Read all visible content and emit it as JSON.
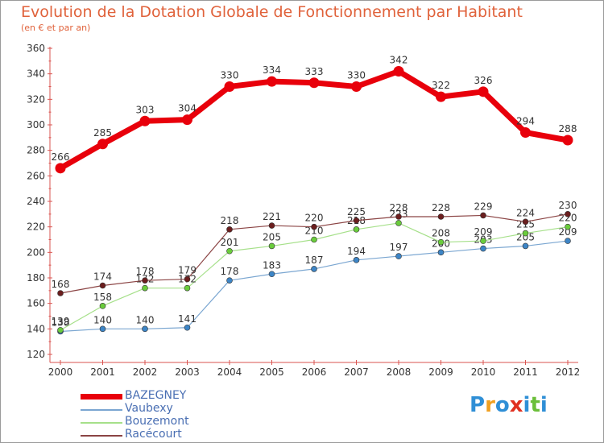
{
  "chart_data": {
    "type": "line",
    "title": "Evolution de la Dotation Globale de Fonctionnement par Habitant",
    "subtitle": "(en € et par an)",
    "xlabel": "",
    "ylabel": "",
    "ylim": [
      120,
      360
    ],
    "yticks": [
      "120",
      "140",
      "160",
      "180",
      "200",
      "220",
      "240",
      "260",
      "280",
      "300",
      "320",
      "340",
      "360"
    ],
    "categories": [
      "2000",
      "2001",
      "2002",
      "2003",
      "2004",
      "2005",
      "2006",
      "2007",
      "2008",
      "2009",
      "2010",
      "2011",
      "2012"
    ],
    "series": [
      {
        "name": "Vaubexy",
        "color": "#7aa6d1",
        "marker_color": "#3d85c6",
        "width": 1.2,
        "values": [
          138,
          140,
          140,
          141,
          178,
          183,
          187,
          194,
          197,
          200,
          203,
          205,
          209
        ],
        "labels": [
          "138",
          "140",
          "140",
          "141",
          "178",
          "183",
          "187",
          "194",
          "197",
          "200",
          "203",
          "205",
          "209"
        ]
      },
      {
        "name": "Bouzemont",
        "color": "#a6e08a",
        "marker_color": "#6acc3c",
        "width": 1.2,
        "values": [
          139,
          158,
          172,
          172,
          201,
          205,
          210,
          218,
          223,
          208,
          209,
          215,
          220
        ],
        "labels": [
          "139",
          "158",
          "172",
          "172",
          "201",
          "205",
          "210",
          "218",
          "223",
          "208",
          "209",
          "215",
          "220"
        ]
      },
      {
        "name": "Racécourt",
        "color": "#8b4444",
        "marker_color": "#6b1e1e",
        "width": 1.2,
        "values": [
          168,
          174,
          178,
          179,
          218,
          221,
          220,
          225,
          228,
          228,
          229,
          224,
          230
        ],
        "labels": [
          "168",
          "174",
          "178",
          "179",
          "218",
          "221",
          "220",
          "225",
          "228",
          "228",
          "229",
          "224",
          "230"
        ]
      },
      {
        "name": "BAZEGNEY",
        "color": "#e8000b",
        "marker_color": "#e8000b",
        "width": 7,
        "values": [
          266,
          285,
          303,
          304,
          330,
          334,
          333,
          330,
          342,
          322,
          326,
          294,
          288
        ],
        "labels": [
          "266",
          "285",
          "303",
          "304",
          "330",
          "334",
          "333",
          "330",
          "342",
          "322",
          "326",
          "294",
          "288"
        ]
      }
    ],
    "legend": [
      {
        "name": "BAZEGNEY",
        "color": "#e8000b",
        "thick": true
      },
      {
        "name": "Vaubexy",
        "color": "#7aa6d1",
        "thick": false
      },
      {
        "name": "Bouzemont",
        "color": "#a6e08a",
        "thick": false
      },
      {
        "name": "Racécourt",
        "color": "#8b4444",
        "thick": false
      }
    ]
  },
  "logo": {
    "letters": [
      "P",
      "r",
      "o",
      "x",
      "i",
      "t",
      "i"
    ],
    "colors": [
      "#2f8fd6",
      "#f0a020",
      "#2f8fd6",
      "#e03020",
      "#2f8fd6",
      "#6bbf3a",
      "#2f8fd6"
    ]
  }
}
